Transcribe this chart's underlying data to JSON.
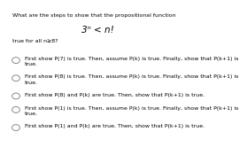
{
  "title_line1": "What are the steps to show that the propositional function",
  "formula": "3ⁿ < n!",
  "title_line2": "true for all n≥8?",
  "options": [
    "First show P(7) is true. Then, assume P(k) is true. Finally, show that P(k+1) is\ntrue.",
    "First show P(8) is true. Then, assume P(k) is true. Finally, show that P(k+1) is\ntrue.",
    "First show P(8) and P(k) are true. Then, show that P(k+1) is true.",
    "First show P(1) is true. Then, assume P(k) is true. Finally, show that P(k+1) is\ntrue.",
    "First show P(1) and P(k) are true. Then, show that P(k+1) is true."
  ],
  "correct_option": -1,
  "bg_color": "#ffffff",
  "text_color": "#000000",
  "font_size": 4.5,
  "formula_font_size": 7.5,
  "title_font_size": 4.5,
  "circle_r": 0.022,
  "filled_circle_color": "#000000",
  "empty_circle_color": "#ffffff",
  "circle_edge_color": "#777777",
  "circle_lw": 0.6
}
